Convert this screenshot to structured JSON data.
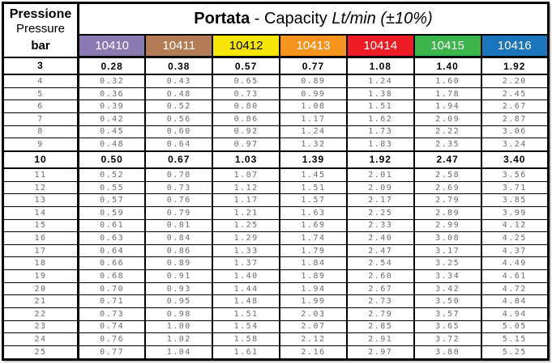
{
  "header": {
    "pressure_col": {
      "label_it": "Pressione",
      "label_en": "Pressure",
      "unit": "bar"
    },
    "title": {
      "bold": "Portata",
      "regular": " - Capacity ",
      "italic": "Lt/min (±10%)"
    },
    "models": [
      {
        "code": "10410",
        "bg": "#8a7ab2",
        "fg": "#ffffff"
      },
      {
        "code": "10411",
        "bg": "#b47c55",
        "fg": "#ffffff"
      },
      {
        "code": "10412",
        "bg": "#f7e700",
        "fg": "#000000"
      },
      {
        "code": "10413",
        "bg": "#f7941d",
        "fg": "#ffffff"
      },
      {
        "code": "10414",
        "bg": "#ed1c24",
        "fg": "#ffffff"
      },
      {
        "code": "10415",
        "bg": "#39b54a",
        "fg": "#ffffff"
      },
      {
        "code": "10416",
        "bg": "#1b75bc",
        "fg": "#ffffff"
      }
    ]
  },
  "table": {
    "rows": [
      {
        "pressure": "3",
        "bold": true,
        "values": [
          "0.28",
          "0.38",
          "0.57",
          "0.77",
          "1.08",
          "1.40",
          "1.92"
        ]
      },
      {
        "pressure": "4",
        "bold": false,
        "values": [
          "0.32",
          "0.43",
          "0.65",
          "0.89",
          "1.24",
          "1.60",
          "2.20"
        ]
      },
      {
        "pressure": "5",
        "bold": false,
        "values": [
          "0.36",
          "0.48",
          "0.73",
          "0.99",
          "1.38",
          "1.78",
          "2.45"
        ]
      },
      {
        "pressure": "6",
        "bold": false,
        "values": [
          "0.39",
          "0.52",
          "0.80",
          "1.08",
          "1.51",
          "1.94",
          "2.67"
        ]
      },
      {
        "pressure": "7",
        "bold": false,
        "values": [
          "0.42",
          "0.56",
          "0.86",
          "1.17",
          "1.62",
          "2.09",
          "2.87"
        ]
      },
      {
        "pressure": "8",
        "bold": false,
        "values": [
          "0.45",
          "0.60",
          "0.92",
          "1.24",
          "1.73",
          "2.22",
          "3.06"
        ]
      },
      {
        "pressure": "9",
        "bold": false,
        "values": [
          "0.48",
          "0.64",
          "0.97",
          "1.32",
          "1.83",
          "2.35",
          "3.24"
        ]
      },
      {
        "pressure": "10",
        "bold": true,
        "values": [
          "0.50",
          "0.67",
          "1.03",
          "1.39",
          "1.92",
          "2.47",
          "3.40"
        ]
      },
      {
        "pressure": "11",
        "bold": false,
        "values": [
          "0.52",
          "0.70",
          "1.07",
          "1.45",
          "2.01",
          "2.58",
          "3.56"
        ]
      },
      {
        "pressure": "12",
        "bold": false,
        "values": [
          "0.55",
          "0.73",
          "1.12",
          "1.51",
          "2.09",
          "2.69",
          "3.71"
        ]
      },
      {
        "pressure": "13",
        "bold": false,
        "values": [
          "0.57",
          "0.76",
          "1.17",
          "1.57",
          "2.17",
          "2.79",
          "3.85"
        ]
      },
      {
        "pressure": "14",
        "bold": false,
        "values": [
          "0.59",
          "0.79",
          "1.21",
          "1.63",
          "2.25",
          "2.89",
          "3.99"
        ]
      },
      {
        "pressure": "15",
        "bold": false,
        "values": [
          "0.61",
          "0.81",
          "1.25",
          "1.69",
          "2.33",
          "2.99",
          "4.12"
        ]
      },
      {
        "pressure": "16",
        "bold": false,
        "values": [
          "0.63",
          "0.84",
          "1.29",
          "1.74",
          "2.40",
          "3.08",
          "4.25"
        ]
      },
      {
        "pressure": "17",
        "bold": false,
        "values": [
          "0.64",
          "0.86",
          "1.33",
          "1.79",
          "2.47",
          "3.17",
          "4.37"
        ]
      },
      {
        "pressure": "18",
        "bold": false,
        "values": [
          "0.66",
          "0.89",
          "1.37",
          "1.84",
          "2.54",
          "3.25",
          "4.49"
        ]
      },
      {
        "pressure": "19",
        "bold": false,
        "values": [
          "0.68",
          "0.91",
          "1.40",
          "1.89",
          "2.60",
          "3.34",
          "4.61"
        ]
      },
      {
        "pressure": "20",
        "bold": false,
        "values": [
          "0.70",
          "0.93",
          "1.44",
          "1.94",
          "2.67",
          "3.42",
          "4.72"
        ]
      },
      {
        "pressure": "21",
        "bold": false,
        "values": [
          "0.71",
          "0.95",
          "1.48",
          "1.99",
          "2.73",
          "3.50",
          "4.84"
        ]
      },
      {
        "pressure": "22",
        "bold": false,
        "values": [
          "0.73",
          "0.98",
          "1.51",
          "2.03",
          "2.79",
          "3.57",
          "4.94"
        ]
      },
      {
        "pressure": "23",
        "bold": false,
        "values": [
          "0.74",
          "1.00",
          "1.54",
          "2.07",
          "2.85",
          "3.65",
          "5.05"
        ]
      },
      {
        "pressure": "24",
        "bold": false,
        "values": [
          "0.76",
          "1.02",
          "1.58",
          "2.12",
          "2.91",
          "3.72",
          "5.15"
        ]
      },
      {
        "pressure": "25",
        "bold": false,
        "values": [
          "0.77",
          "1.04",
          "1.61",
          "2.16",
          "2.97",
          "3.80",
          "5.25"
        ]
      }
    ]
  }
}
